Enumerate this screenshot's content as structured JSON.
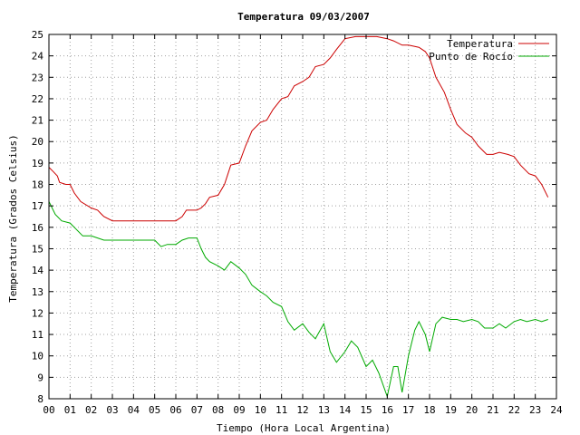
{
  "chart_data": {
    "type": "line",
    "title": "Temperatura 09/03/2007",
    "xlabel": "Tiempo (Hora Local Argentina)",
    "ylabel": "Temperatura (Grados Celsius)",
    "xlim": [
      0,
      24
    ],
    "ylim": [
      8,
      25
    ],
    "x_ticks": [
      0,
      1,
      2,
      3,
      4,
      5,
      6,
      7,
      8,
      9,
      10,
      11,
      12,
      13,
      14,
      15,
      16,
      17,
      18,
      19,
      20,
      21,
      22,
      23,
      24
    ],
    "x_tick_labels": [
      "00",
      "01",
      "02",
      "03",
      "04",
      "05",
      "06",
      "07",
      "08",
      "09",
      "10",
      "11",
      "12",
      "13",
      "14",
      "15",
      "16",
      "17",
      "18",
      "19",
      "20",
      "21",
      "22",
      "23",
      "24"
    ],
    "y_ticks": [
      8,
      9,
      10,
      11,
      12,
      13,
      14,
      15,
      16,
      17,
      18,
      19,
      20,
      21,
      22,
      23,
      24,
      25
    ],
    "y_tick_labels": [
      "8",
      "9",
      "10",
      "11",
      "12",
      "13",
      "14",
      "15",
      "16",
      "17",
      "18",
      "19",
      "20",
      "21",
      "22",
      "23",
      "24",
      "25"
    ],
    "grid": true,
    "legend_position": "top-right",
    "series": [
      {
        "name": "Temperatura",
        "color": "#cc0000",
        "x": [
          0,
          0.2,
          0.4,
          0.5,
          0.8,
          1.0,
          1.2,
          1.5,
          2.0,
          2.3,
          2.5,
          2.6,
          3.0,
          4.0,
          5.0,
          5.5,
          6.0,
          6.3,
          6.5,
          7.0,
          7.2,
          7.4,
          7.6,
          8.0,
          8.3,
          8.6,
          9.0,
          9.3,
          9.6,
          10.0,
          10.3,
          10.6,
          11.0,
          11.3,
          11.6,
          12.0,
          12.3,
          12.6,
          13.0,
          13.3,
          13.6,
          14.0,
          14.5,
          15.0,
          15.5,
          16.0,
          16.3,
          16.7,
          17.0,
          17.5,
          17.8,
          18.0,
          18.3,
          18.7,
          19.0,
          19.3,
          19.7,
          20.0,
          20.3,
          20.7,
          21.0,
          21.3,
          21.7,
          22.0,
          22.3,
          22.7,
          23.0,
          23.3,
          23.6
        ],
        "values": [
          18.8,
          18.6,
          18.4,
          18.1,
          18.0,
          18.0,
          17.6,
          17.2,
          16.9,
          16.8,
          16.6,
          16.5,
          16.3,
          16.3,
          16.3,
          16.3,
          16.3,
          16.5,
          16.8,
          16.8,
          16.9,
          17.1,
          17.4,
          17.5,
          18.0,
          18.9,
          19.0,
          19.8,
          20.5,
          20.9,
          21.0,
          21.5,
          22.0,
          22.1,
          22.6,
          22.8,
          23.0,
          23.5,
          23.6,
          23.9,
          24.3,
          24.8,
          24.9,
          24.9,
          24.9,
          24.8,
          24.7,
          24.5,
          24.5,
          24.4,
          24.2,
          23.9,
          23.0,
          22.3,
          21.5,
          20.8,
          20.4,
          20.2,
          19.8,
          19.4,
          19.4,
          19.5,
          19.4,
          19.3,
          18.9,
          18.5,
          18.4,
          18.0,
          17.4
        ]
      },
      {
        "name": "Punto de Rocío",
        "color": "#00aa00",
        "x": [
          0,
          0.3,
          0.6,
          1.0,
          1.3,
          1.6,
          2.0,
          2.3,
          2.6,
          3.0,
          4.0,
          5.0,
          5.3,
          5.6,
          6.0,
          6.3,
          6.6,
          7.0,
          7.2,
          7.4,
          7.6,
          8.0,
          8.3,
          8.6,
          9.0,
          9.3,
          9.6,
          10.0,
          10.3,
          10.6,
          11.0,
          11.3,
          11.6,
          12.0,
          12.3,
          12.6,
          13.0,
          13.3,
          13.6,
          14.0,
          14.3,
          14.6,
          15.0,
          15.3,
          15.6,
          16.0,
          16.3,
          16.5,
          16.7,
          17.0,
          17.3,
          17.5,
          17.8,
          18.0,
          18.3,
          18.6,
          19.0,
          19.3,
          19.6,
          20.0,
          20.3,
          20.6,
          21.0,
          21.3,
          21.6,
          22.0,
          22.3,
          22.6,
          23.0,
          23.3,
          23.6
        ],
        "values": [
          17.2,
          16.6,
          16.3,
          16.2,
          15.9,
          15.6,
          15.6,
          15.5,
          15.4,
          15.4,
          15.4,
          15.4,
          15.1,
          15.2,
          15.2,
          15.4,
          15.5,
          15.5,
          15.0,
          14.6,
          14.4,
          14.2,
          14.0,
          14.4,
          14.1,
          13.8,
          13.3,
          13.0,
          12.8,
          12.5,
          12.3,
          11.6,
          11.2,
          11.5,
          11.1,
          10.8,
          11.5,
          10.2,
          9.7,
          10.2,
          10.7,
          10.4,
          9.5,
          9.8,
          9.2,
          8.1,
          9.5,
          9.5,
          8.3,
          10.0,
          11.2,
          11.6,
          11.0,
          10.2,
          11.5,
          11.8,
          11.7,
          11.7,
          11.6,
          11.7,
          11.6,
          11.3,
          11.3,
          11.5,
          11.3,
          11.6,
          11.7,
          11.6,
          11.7,
          11.6,
          11.7
        ]
      }
    ]
  }
}
